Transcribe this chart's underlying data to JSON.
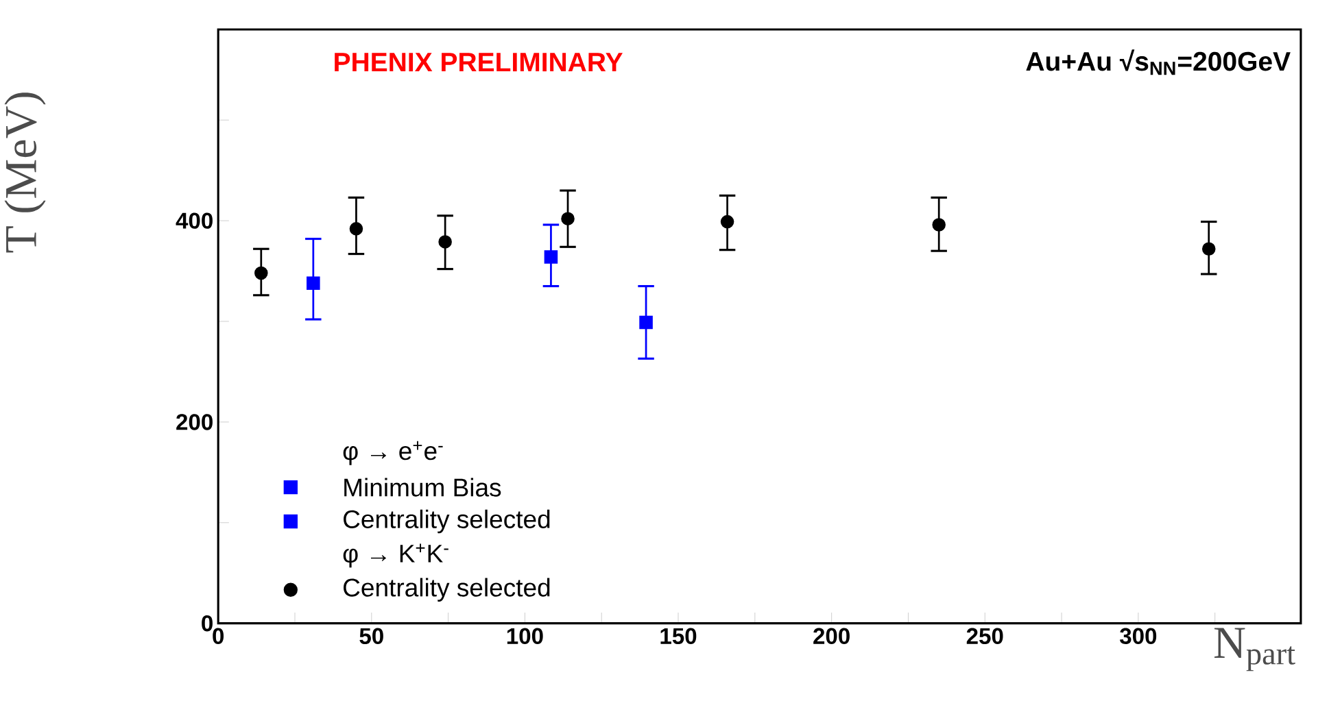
{
  "chart_data": {
    "type": "scatter",
    "xlabel": "N$_{part}$",
    "ylabel": "T (MeV)",
    "annotations": [
      "PHENIX PRELIMINARY",
      "Au+Au √s$_{NN}$=200GeV",
      "φ → e$^{+}$e$^{-}$",
      "φ → K$^{+}$K$^{-}$"
    ],
    "xlim": [
      0,
      353
    ],
    "ylim": [
      0,
      590
    ],
    "xticks": [
      0,
      {
        "value": 25,
        "label": null
      },
      50,
      {
        "value": 75,
        "label": null
      },
      100,
      {
        "value": 125,
        "label": null
      },
      150,
      {
        "value": 175,
        "label": null
      },
      200,
      {
        "value": 225,
        "label": null
      },
      250,
      {
        "value": 275,
        "label": null
      },
      300,
      {
        "value": 325,
        "label": null
      }
    ],
    "yticks": [
      0,
      {
        "value": 100,
        "label": null
      },
      200,
      {
        "value": 300,
        "label": null
      },
      400,
      {
        "value": 500,
        "label": null
      }
    ],
    "grid": false,
    "legend": "bottom left",
    "series": [
      {
        "name": "Minimum Bias",
        "color": "#0000ff",
        "marker": "square",
        "x": [
          108.5
        ],
        "values": [
          364
        ],
        "errors": [
          [
            335,
            396
          ]
        ]
      },
      {
        "name": "Centrality selected",
        "color": "#0000ff",
        "marker": "square",
        "x": [
          31,
          139.5
        ],
        "values": [
          338,
          299
        ],
        "errors": [
          [
            302,
            382
          ],
          [
            263,
            335
          ]
        ]
      },
      {
        "name": "Centrality selected",
        "color": "#000000",
        "marker": "circle",
        "x": [
          14,
          45,
          74,
          114,
          166,
          235,
          323
        ],
        "values": [
          348,
          392,
          379,
          402,
          399,
          396,
          372
        ],
        "errors": [
          [
            326,
            372
          ],
          [
            367,
            423
          ],
          [
            352,
            405
          ],
          [
            374,
            430
          ],
          [
            371,
            425
          ],
          [
            370,
            423
          ],
          [
            347,
            399
          ]
        ]
      }
    ]
  }
}
